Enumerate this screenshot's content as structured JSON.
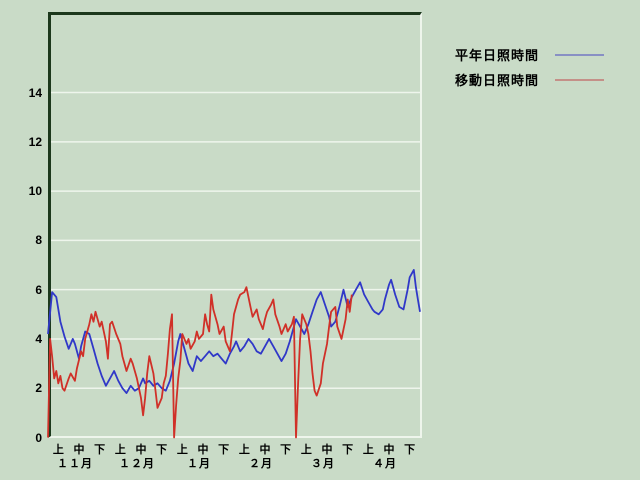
{
  "window": {
    "background_color": "#c9dbc7"
  },
  "chart": {
    "legend": [
      {
        "label": "平年日照時間",
        "series_color": "#3038c8",
        "swatch_color": "#8890c4"
      },
      {
        "label": "移動日照時間",
        "series_color": "#d03028",
        "swatch_color": "#c49088"
      }
    ],
    "frame": {
      "dark_border_color": "#1c381c",
      "light_border_color": "#eef5ec",
      "gridline_color": "#eef5ec",
      "text_color": "#000000"
    }
  },
  "chart_data": {
    "type": "line",
    "title": "",
    "xlabel": "",
    "ylabel": "",
    "units": "hours",
    "y_ticks": [
      "0",
      "2",
      "4",
      "6",
      "8",
      "10",
      "12",
      "14"
    ],
    "ylim": [
      0,
      15.3
    ],
    "grid": "horizontal-only",
    "legend_position": "top-right-outside",
    "x_months": [
      "１１月",
      "１２月",
      "１月",
      "２月",
      "３月",
      "４月"
    ],
    "x_periods": [
      "上",
      "中",
      "下"
    ],
    "x_domain_days": [
      0,
      180
    ],
    "series": [
      {
        "name": "平年日照時間",
        "color": "#3038c8",
        "points": [
          [
            0,
            4.2
          ],
          [
            2,
            5.9
          ],
          [
            4,
            5.7
          ],
          [
            6,
            4.7
          ],
          [
            8,
            4.1
          ],
          [
            10,
            3.6
          ],
          [
            12,
            4.0
          ],
          [
            13,
            3.8
          ],
          [
            15,
            3.2
          ],
          [
            16,
            3.7
          ],
          [
            18,
            4.3
          ],
          [
            20,
            4.2
          ],
          [
            22,
            3.6
          ],
          [
            24,
            3.0
          ],
          [
            26,
            2.5
          ],
          [
            28,
            2.1
          ],
          [
            30,
            2.4
          ],
          [
            32,
            2.7
          ],
          [
            34,
            2.3
          ],
          [
            36,
            2.0
          ],
          [
            38,
            1.8
          ],
          [
            40,
            2.1
          ],
          [
            42,
            1.9
          ],
          [
            44,
            2.0
          ],
          [
            46,
            2.4
          ],
          [
            47,
            2.2
          ],
          [
            49,
            2.3
          ],
          [
            51,
            2.1
          ],
          [
            53,
            2.2
          ],
          [
            55,
            2.0
          ],
          [
            57,
            1.9
          ],
          [
            59,
            2.3
          ],
          [
            61,
            3.0
          ],
          [
            63,
            3.9
          ],
          [
            64,
            4.2
          ],
          [
            66,
            3.6
          ],
          [
            68,
            3.0
          ],
          [
            70,
            2.7
          ],
          [
            72,
            3.3
          ],
          [
            74,
            3.1
          ],
          [
            76,
            3.3
          ],
          [
            78,
            3.5
          ],
          [
            80,
            3.3
          ],
          [
            82,
            3.4
          ],
          [
            84,
            3.2
          ],
          [
            86,
            3.0
          ],
          [
            88,
            3.4
          ],
          [
            90,
            3.7
          ],
          [
            91,
            3.9
          ],
          [
            93,
            3.5
          ],
          [
            95,
            3.7
          ],
          [
            97,
            4.0
          ],
          [
            99,
            3.8
          ],
          [
            101,
            3.5
          ],
          [
            103,
            3.4
          ],
          [
            105,
            3.7
          ],
          [
            107,
            4.0
          ],
          [
            109,
            3.7
          ],
          [
            111,
            3.4
          ],
          [
            113,
            3.1
          ],
          [
            115,
            3.4
          ],
          [
            117,
            3.9
          ],
          [
            119,
            4.5
          ],
          [
            120,
            4.8
          ],
          [
            122,
            4.5
          ],
          [
            124,
            4.2
          ],
          [
            126,
            4.6
          ],
          [
            128,
            5.1
          ],
          [
            130,
            5.6
          ],
          [
            132,
            5.9
          ],
          [
            134,
            5.4
          ],
          [
            136,
            4.9
          ],
          [
            137,
            4.5
          ],
          [
            139,
            4.7
          ],
          [
            141,
            5.3
          ],
          [
            143,
            6.0
          ],
          [
            145,
            5.3
          ],
          [
            147,
            5.7
          ],
          [
            149,
            6.0
          ],
          [
            151,
            6.3
          ],
          [
            153,
            5.8
          ],
          [
            155,
            5.5
          ],
          [
            157,
            5.2
          ],
          [
            158,
            5.1
          ],
          [
            160,
            5.0
          ],
          [
            162,
            5.2
          ],
          [
            163,
            5.6
          ],
          [
            165,
            6.2
          ],
          [
            166,
            6.4
          ],
          [
            168,
            5.8
          ],
          [
            170,
            5.3
          ],
          [
            172,
            5.2
          ],
          [
            174,
            6.0
          ],
          [
            175,
            6.5
          ],
          [
            177,
            6.8
          ],
          [
            178,
            6.1
          ],
          [
            179,
            5.6
          ],
          [
            180,
            5.1
          ]
        ]
      },
      {
        "name": "移動日照時間",
        "color": "#d03028",
        "points": [
          [
            0,
            0.0
          ],
          [
            1,
            4.0
          ],
          [
            2,
            3.3
          ],
          [
            3,
            2.4
          ],
          [
            4,
            2.7
          ],
          [
            5,
            2.2
          ],
          [
            6,
            2.5
          ],
          [
            7,
            2.0
          ],
          [
            8,
            1.9
          ],
          [
            10,
            2.4
          ],
          [
            11,
            2.6
          ],
          [
            13,
            2.3
          ],
          [
            14,
            2.8
          ],
          [
            16,
            3.5
          ],
          [
            17,
            3.3
          ],
          [
            18,
            4.0
          ],
          [
            20,
            4.6
          ],
          [
            21,
            5.0
          ],
          [
            22,
            4.7
          ],
          [
            23,
            5.1
          ],
          [
            25,
            4.5
          ],
          [
            26,
            4.7
          ],
          [
            28,
            3.9
          ],
          [
            29,
            3.2
          ],
          [
            30,
            4.6
          ],
          [
            31,
            4.7
          ],
          [
            33,
            4.2
          ],
          [
            35,
            3.8
          ],
          [
            36,
            3.3
          ],
          [
            38,
            2.7
          ],
          [
            40,
            3.2
          ],
          [
            41,
            3.0
          ],
          [
            43,
            2.4
          ],
          [
            45,
            1.6
          ],
          [
            46,
            0.9
          ],
          [
            47,
            1.6
          ],
          [
            48,
            2.6
          ],
          [
            49,
            3.3
          ],
          [
            51,
            2.6
          ],
          [
            52,
            1.9
          ],
          [
            53,
            1.2
          ],
          [
            55,
            1.6
          ],
          [
            56,
            2.2
          ],
          [
            57,
            2.5
          ],
          [
            58,
            3.4
          ],
          [
            59,
            4.4
          ],
          [
            60,
            5.0
          ],
          [
            61,
            0.0
          ],
          [
            62,
            1.3
          ],
          [
            63,
            2.4
          ],
          [
            64,
            3.1
          ],
          [
            65,
            4.2
          ],
          [
            67,
            3.8
          ],
          [
            68,
            4.0
          ],
          [
            69,
            3.6
          ],
          [
            71,
            3.9
          ],
          [
            72,
            4.3
          ],
          [
            73,
            4.0
          ],
          [
            75,
            4.2
          ],
          [
            76,
            5.0
          ],
          [
            77,
            4.6
          ],
          [
            78,
            4.3
          ],
          [
            79,
            5.8
          ],
          [
            80,
            5.2
          ],
          [
            82,
            4.6
          ],
          [
            83,
            4.2
          ],
          [
            85,
            4.5
          ],
          [
            86,
            3.9
          ],
          [
            88,
            3.5
          ],
          [
            89,
            4.2
          ],
          [
            90,
            5.0
          ],
          [
            92,
            5.6
          ],
          [
            93,
            5.8
          ],
          [
            95,
            5.9
          ],
          [
            96,
            6.1
          ],
          [
            98,
            5.3
          ],
          [
            99,
            4.9
          ],
          [
            101,
            5.2
          ],
          [
            102,
            4.8
          ],
          [
            104,
            4.4
          ],
          [
            105,
            4.8
          ],
          [
            106,
            5.1
          ],
          [
            108,
            5.4
          ],
          [
            109,
            5.6
          ],
          [
            110,
            5.0
          ],
          [
            112,
            4.5
          ],
          [
            113,
            4.2
          ],
          [
            115,
            4.6
          ],
          [
            116,
            4.3
          ],
          [
            118,
            4.6
          ],
          [
            119,
            4.9
          ],
          [
            120,
            0.0
          ],
          [
            121,
            2.2
          ],
          [
            122,
            4.0
          ],
          [
            123,
            5.0
          ],
          [
            125,
            4.6
          ],
          [
            126,
            4.2
          ],
          [
            127,
            3.5
          ],
          [
            128,
            2.6
          ],
          [
            129,
            1.9
          ],
          [
            130,
            1.7
          ],
          [
            132,
            2.2
          ],
          [
            133,
            3.0
          ],
          [
            135,
            3.8
          ],
          [
            136,
            4.5
          ],
          [
            137,
            5.1
          ],
          [
            139,
            5.3
          ],
          [
            140,
            4.5
          ],
          [
            142,
            4.0
          ],
          [
            144,
            4.8
          ],
          [
            145,
            5.6
          ],
          [
            146,
            5.1
          ],
          [
            147,
            5.8
          ]
        ]
      }
    ]
  }
}
